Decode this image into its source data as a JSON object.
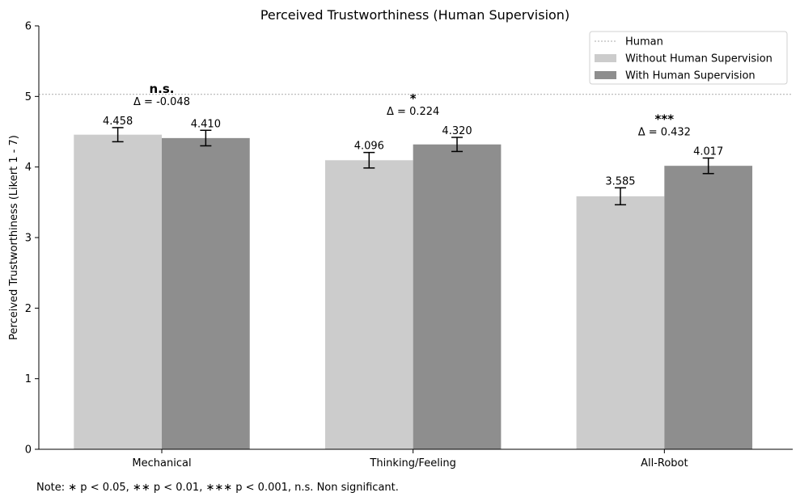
{
  "chart_data": {
    "type": "bar",
    "title": "Perceived Trustworthiness (Human Supervision)",
    "xlabel": "",
    "ylabel": "Perceived Trustworthiness (Likert 1 - 7)",
    "ylim": [
      0,
      6
    ],
    "yticks": [
      "0",
      "1",
      "2",
      "3",
      "4",
      "5",
      "6"
    ],
    "categories": [
      "Mechanical",
      "Thinking/Feeling",
      "All-Robot"
    ],
    "series": [
      {
        "name": "Without Human Supervision",
        "color": "#cccccc",
        "values": [
          4.458,
          4.096,
          3.585
        ],
        "labels": [
          "4.458",
          "4.096",
          "3.585"
        ],
        "errors": [
          0.1,
          0.11,
          0.12
        ]
      },
      {
        "name": "With Human Supervision",
        "color": "#8e8e8e",
        "values": [
          4.41,
          4.32,
          4.017
        ],
        "labels": [
          "4.410",
          "4.320",
          "4.017"
        ],
        "errors": [
          0.11,
          0.1,
          0.11
        ]
      }
    ],
    "reference_line": {
      "name": "Human",
      "value": 5.03,
      "color": "#aaaaaa"
    },
    "annotations": [
      {
        "significance": "n.s.",
        "delta": "Δ = -0.048"
      },
      {
        "significance": "*",
        "delta": "Δ = 0.224"
      },
      {
        "significance": "***",
        "delta": "Δ = 0.432"
      }
    ],
    "legend_position": "top-right",
    "grid": false,
    "note": "Note: ∗ p < 0.05, ∗∗ p < 0.01, ∗∗∗ p < 0.001, n.s. Non significant."
  }
}
